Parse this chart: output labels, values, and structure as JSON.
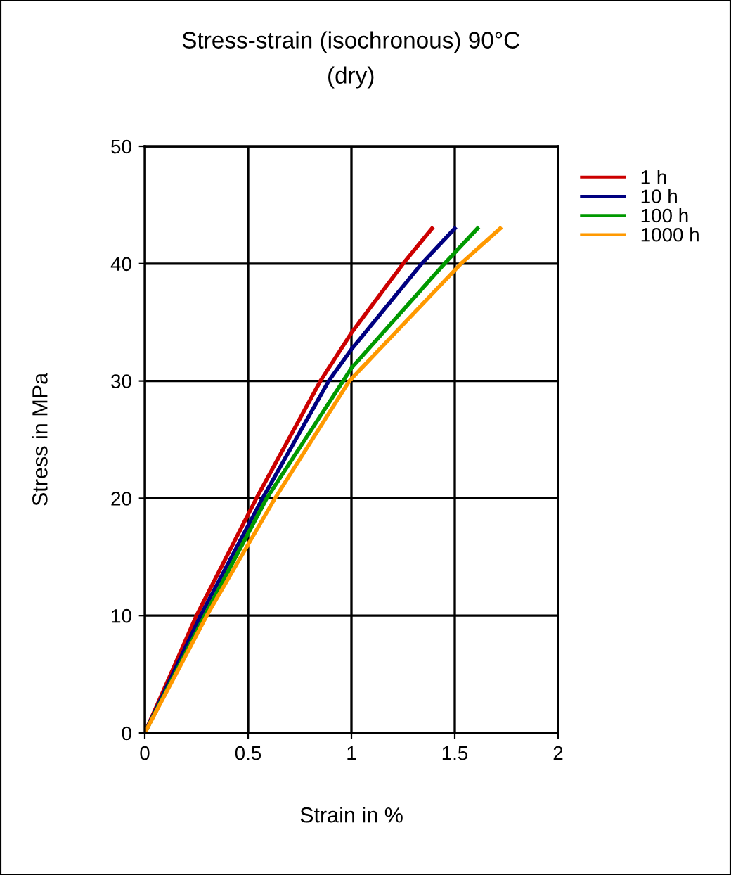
{
  "chart_data": {
    "type": "line",
    "title": "Stress-strain (isochronous) 90°C",
    "subtitle": "(dry)",
    "xlabel": "Strain in %",
    "ylabel": "Stress in MPa",
    "xlim": [
      0,
      2
    ],
    "xticks": [
      0,
      0.5,
      1,
      1.5,
      2
    ],
    "ylim": [
      0,
      50
    ],
    "yticks": [
      0,
      10,
      20,
      30,
      40,
      50
    ],
    "grid": true,
    "legend": "top right",
    "marker": "none",
    "line_style": "solid",
    "series": [
      {
        "name": "1 h",
        "color": "#cc0000",
        "x": [
          0,
          0.25,
          0.54,
          0.85,
          1.0,
          1.25,
          1.39
        ],
        "values": [
          0,
          10,
          20,
          30,
          34.1,
          40,
          43
        ]
      },
      {
        "name": "10 h",
        "color": "#000080",
        "x": [
          0,
          0.27,
          0.57,
          0.89,
          1.0,
          1.34,
          1.5
        ],
        "values": [
          0,
          10,
          20,
          30,
          32.7,
          40,
          43
        ]
      },
      {
        "name": "100 h",
        "color": "#009900",
        "x": [
          0,
          0.29,
          0.59,
          0.96,
          1.0,
          1.45,
          1.61
        ],
        "values": [
          0,
          10,
          20,
          30,
          31.1,
          40,
          43
        ]
      },
      {
        "name": "1000 h",
        "color": "#ff9900",
        "x": [
          0,
          0.3,
          0.63,
          0.99,
          1.53,
          1.72
        ],
        "values": [
          0,
          10,
          20,
          30,
          40,
          43
        ]
      }
    ]
  }
}
